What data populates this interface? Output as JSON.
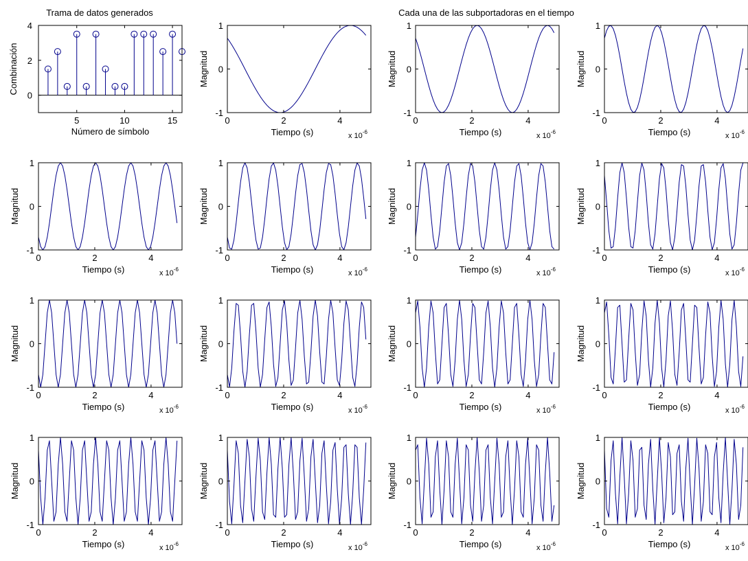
{
  "figure": {
    "title_left": "Trama de datos generados",
    "title_right": "Cada una de las subportadoras en el tiempo",
    "line_color": "#00008B",
    "axes_color": "#000000",
    "background": "#ffffff"
  },
  "chart_data": [
    {
      "type": "stem",
      "title": "Trama de datos generados",
      "xlabel": "Número de símbolo",
      "ylabel": "Combinación",
      "xlim": [
        1,
        16
      ],
      "ylim": [
        -1,
        4
      ],
      "xticks": [
        "5",
        "10",
        "15"
      ],
      "yticks": [
        "0",
        "2",
        "4"
      ],
      "x": [
        2,
        3,
        4,
        5,
        6,
        7,
        8,
        9,
        10,
        11,
        12,
        13,
        14,
        15,
        16
      ],
      "values": [
        1.5,
        2.5,
        0.5,
        3.5,
        0.5,
        3.5,
        1.5,
        0.5,
        0.5,
        3.5,
        3.5,
        3.5,
        2.5,
        3.5,
        2.5
      ],
      "marker": "circle",
      "baseline": 0
    },
    {
      "type": "line",
      "title": "Cada una de las subportadoras en el tiempo",
      "description": "15 subplots, one per subcarrier k=1..15; each shows cos(2*pi*k*t/T + phi_k) sampled at 64 points over T = 5e-6 s",
      "xlabel": "Tiempo (s)",
      "ylabel": "Magnitud",
      "x_exponent_label": "x 10",
      "x_exponent": "-6",
      "xlim": [
        0,
        5.1e-06
      ],
      "ylim": [
        -1,
        1
      ],
      "xticks": [
        "0",
        "2",
        "4"
      ],
      "yticks": [
        "-1",
        "0",
        "1"
      ],
      "samples": 64,
      "series": [
        {
          "k": 1,
          "phase_deg": 45
        },
        {
          "k": 2,
          "phase_deg": 45
        },
        {
          "k": 3,
          "phase_deg": -45
        },
        {
          "k": 4,
          "phase_deg": 135
        },
        {
          "k": 5,
          "phase_deg": 135
        },
        {
          "k": 6,
          "phase_deg": -135
        },
        {
          "k": 7,
          "phase_deg": 45
        },
        {
          "k": 8,
          "phase_deg": 135
        },
        {
          "k": 9,
          "phase_deg": 135
        },
        {
          "k": 10,
          "phase_deg": -45
        },
        {
          "k": 11,
          "phase_deg": -45
        },
        {
          "k": 12,
          "phase_deg": 45
        },
        {
          "k": 13,
          "phase_deg": 45
        },
        {
          "k": 14,
          "phase_deg": -45
        },
        {
          "k": 15,
          "phase_deg": 45
        }
      ]
    }
  ]
}
